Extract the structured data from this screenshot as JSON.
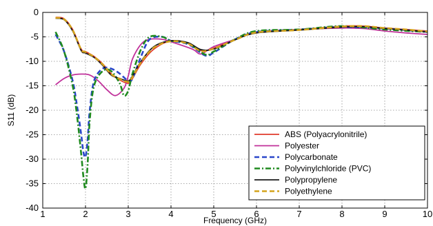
{
  "chart_data": {
    "type": "line",
    "title": "",
    "xlabel": "Frequency (GHz)",
    "ylabel": "S11 (dB)",
    "xlim": [
      1,
      10
    ],
    "ylim": [
      -40,
      0
    ],
    "xticks": [
      "1",
      "2",
      "3",
      "4",
      "5",
      "6",
      "7",
      "8",
      "9",
      "10"
    ],
    "yticks": [
      "0",
      "-5",
      "-10",
      "-15",
      "-20",
      "-25",
      "-30",
      "-35",
      "-40"
    ],
    "grid": true,
    "legend_position": "lower-right",
    "series": [
      {
        "name": "ABS (Polyacrylonitrile)",
        "color": "#e0392b",
        "style": "solid",
        "x": [
          1.3,
          1.5,
          1.7,
          1.9,
          2.0,
          2.2,
          2.4,
          2.6,
          2.8,
          3.0,
          3.1,
          3.3,
          3.6,
          4.0,
          4.4,
          4.7,
          5.0,
          5.5,
          6.0,
          7.0,
          8.0,
          8.5,
          9.0,
          9.5,
          10.0
        ],
        "y": [
          -1.0,
          -1.3,
          -3.5,
          -7.5,
          -8.0,
          -9.0,
          -10.5,
          -12.5,
          -13.8,
          -14.5,
          -13.5,
          -10.5,
          -7.5,
          -5.8,
          -6.3,
          -7.8,
          -7.3,
          -5.5,
          -4.0,
          -3.5,
          -2.8,
          -2.8,
          -3.2,
          -3.5,
          -3.8
        ]
      },
      {
        "name": "Polyester",
        "color": "#c0309a",
        "style": "solid",
        "x": [
          1.3,
          1.5,
          1.7,
          1.9,
          2.1,
          2.3,
          2.5,
          2.7,
          2.9,
          3.0,
          3.1,
          3.3,
          3.5,
          3.8,
          4.0,
          4.5,
          4.7,
          5.0,
          5.5,
          6.0,
          7.0,
          8.0,
          8.5,
          9.0,
          9.5,
          10.0
        ],
        "y": [
          -14.8,
          -13.5,
          -12.8,
          -12.6,
          -12.8,
          -14.0,
          -15.8,
          -17.0,
          -15.5,
          -13.0,
          -9.5,
          -6.5,
          -5.5,
          -5.5,
          -6.0,
          -7.5,
          -8.5,
          -7.0,
          -5.5,
          -4.0,
          -3.5,
          -3.2,
          -3.3,
          -3.8,
          -4.2,
          -4.5
        ]
      },
      {
        "name": "Polycarbonate",
        "color": "#2946c9",
        "style": "dashed",
        "x": [
          1.3,
          1.5,
          1.7,
          1.8,
          1.9,
          1.95,
          2.0,
          2.05,
          2.1,
          2.2,
          2.4,
          2.6,
          2.8,
          3.0,
          3.1,
          3.3,
          3.5,
          3.8,
          4.0,
          4.4,
          4.8,
          5.0,
          5.5,
          6.0,
          7.0,
          8.0,
          9.0,
          10.0
        ],
        "y": [
          -4.5,
          -8.0,
          -14.0,
          -19.0,
          -25.0,
          -28.5,
          -29.5,
          -26.0,
          -20.0,
          -14.0,
          -11.5,
          -11.5,
          -12.5,
          -14.0,
          -13.5,
          -9.0,
          -5.5,
          -5.0,
          -5.8,
          -6.5,
          -8.8,
          -8.2,
          -5.5,
          -4.0,
          -3.5,
          -3.0,
          -3.3,
          -4.0
        ]
      },
      {
        "name": "Polyvinylchloride (PVC)",
        "color": "#1f8a1f",
        "style": "dashdot",
        "x": [
          1.3,
          1.5,
          1.7,
          1.8,
          1.9,
          1.95,
          2.0,
          2.05,
          2.1,
          2.2,
          2.4,
          2.6,
          2.8,
          2.9,
          3.0,
          3.1,
          3.3,
          3.5,
          3.8,
          4.0,
          4.4,
          4.8,
          5.0,
          5.5,
          6.0,
          7.0,
          8.0,
          9.0,
          10.0
        ],
        "y": [
          -4.0,
          -8.0,
          -15.0,
          -21.0,
          -29.0,
          -33.5,
          -36.0,
          -31.0,
          -22.0,
          -15.0,
          -12.0,
          -12.0,
          -14.5,
          -17.0,
          -16.0,
          -12.5,
          -7.5,
          -5.0,
          -5.0,
          -5.8,
          -6.3,
          -8.6,
          -8.0,
          -5.5,
          -3.8,
          -3.5,
          -2.8,
          -3.5,
          -4.0
        ]
      },
      {
        "name": "Polypropylene",
        "color": "#1a1a1a",
        "style": "solid",
        "x": [
          1.3,
          1.5,
          1.7,
          1.9,
          2.0,
          2.2,
          2.4,
          2.6,
          2.8,
          3.0,
          3.1,
          3.3,
          3.6,
          4.0,
          4.4,
          4.7,
          5.0,
          5.5,
          6.0,
          7.0,
          8.0,
          8.5,
          9.0,
          9.5,
          10.0
        ],
        "y": [
          -1.2,
          -1.5,
          -3.8,
          -7.8,
          -8.3,
          -9.2,
          -10.8,
          -12.8,
          -13.5,
          -14.0,
          -13.0,
          -10.0,
          -7.0,
          -5.8,
          -6.2,
          -7.6,
          -7.5,
          -5.6,
          -4.2,
          -3.6,
          -3.0,
          -2.9,
          -3.3,
          -3.6,
          -4.0
        ]
      },
      {
        "name": "Polyethylene",
        "color": "#d4a31c",
        "style": "dashed",
        "x": [
          1.3,
          1.5,
          1.7,
          1.9,
          2.0,
          2.2,
          2.4,
          2.6,
          2.8,
          3.0,
          3.1,
          3.3,
          3.6,
          4.0,
          4.4,
          4.7,
          5.0,
          5.5,
          6.0,
          7.0,
          8.0,
          8.5,
          9.0,
          9.5,
          10.0
        ],
        "y": [
          -1.1,
          -1.4,
          -3.6,
          -7.6,
          -8.1,
          -9.1,
          -10.6,
          -12.6,
          -13.6,
          -14.2,
          -13.2,
          -10.2,
          -7.2,
          -5.9,
          -6.4,
          -7.9,
          -7.4,
          -5.6,
          -4.1,
          -3.6,
          -2.9,
          -2.8,
          -3.2,
          -3.5,
          -3.9
        ]
      }
    ]
  }
}
